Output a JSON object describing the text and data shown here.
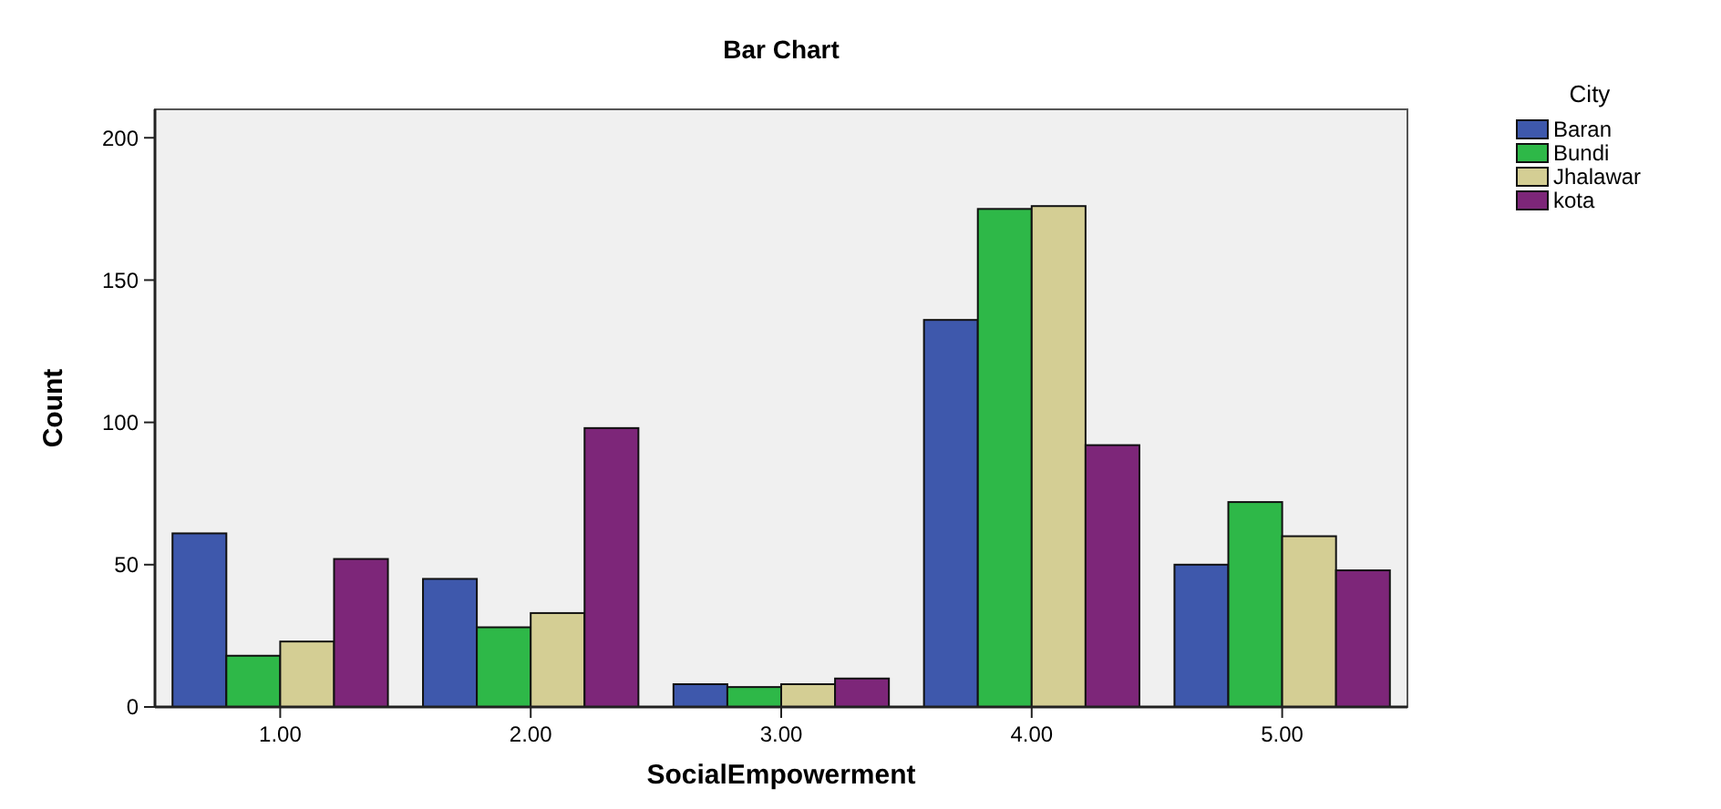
{
  "chart_data": {
    "type": "bar",
    "title": "Bar Chart",
    "xlabel": "SocialEmpowerment",
    "ylabel": "Count",
    "legend_title": "City",
    "legend": "top right",
    "grid": false,
    "categories": [
      "1.00",
      "2.00",
      "3.00",
      "4.00",
      "5.00"
    ],
    "ylim": [
      0,
      210
    ],
    "yticks": [
      0,
      50,
      100,
      150,
      200
    ],
    "series": [
      {
        "name": "Baran",
        "color": "#3e58ac",
        "values": [
          61,
          45,
          8,
          136,
          50
        ]
      },
      {
        "name": "Bundi",
        "color": "#2eb848",
        "values": [
          18,
          28,
          7,
          175,
          72
        ]
      },
      {
        "name": "Jhalawar",
        "color": "#d4ce94",
        "values": [
          23,
          33,
          8,
          176,
          60
        ]
      },
      {
        "name": "kota",
        "color": "#7d2679",
        "values": [
          52,
          98,
          10,
          92,
          48
        ]
      }
    ]
  }
}
